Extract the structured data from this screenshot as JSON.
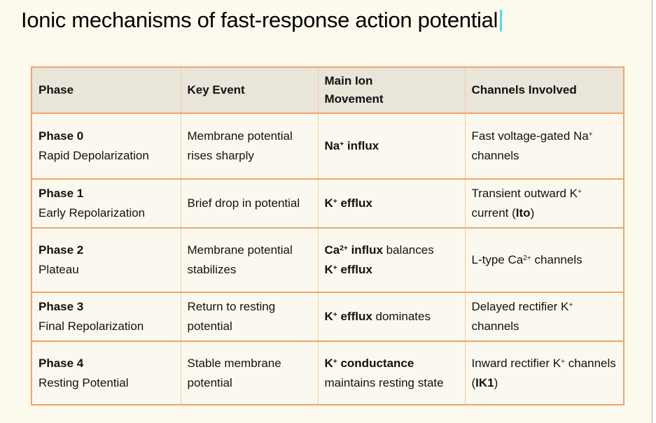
{
  "title": "Ionic mechanisms of fast-response action potential",
  "table": {
    "columns": [
      "Phase",
      "Key Event",
      "Main Ion\nMovement",
      "Channels Involved"
    ],
    "rows": [
      {
        "phase": "**Phase 0**\nRapid Depolarization",
        "key_event": "Membrane potential rises sharply",
        "ion_movement": "**Na^+^ influx**",
        "channels": "Fast voltage-gated Na^+^ channels"
      },
      {
        "phase": "**Phase 1**\nEarly Repolarization",
        "key_event": "Brief drop in potential",
        "ion_movement": "**K^+^ efflux**",
        "channels": "Transient outward K^+^ current (**Ito**)"
      },
      {
        "phase": "**Phase 2**\nPlateau",
        "key_event": "Membrane potential stabilizes",
        "ion_movement": "**Ca^2+^ influx** balances\n**K^+^ efflux**",
        "channels": "L-type Ca^2+^ channels"
      },
      {
        "phase": "**Phase 3**\nFinal Repolarization",
        "key_event": "Return to resting potential",
        "ion_movement": "**K^+^ efflux** dominates",
        "channels": "Delayed rectifier K^+^ channels"
      },
      {
        "phase": "**Phase 4**\nResting Potential",
        "key_event": "Stable membrane potential",
        "ion_movement": "**K^+^ conductance** maintains resting state",
        "channels": "Inward rectifier K^+^ channels (**IK1**)"
      }
    ]
  },
  "colors": {
    "border": "#F0A46C",
    "border-light": "#F3C9A2",
    "header-bg": "#E9E5D9",
    "cell-bg": "#FBF9EF",
    "page-bg": "#FCFAEC",
    "caret": "#54D6F5"
  }
}
